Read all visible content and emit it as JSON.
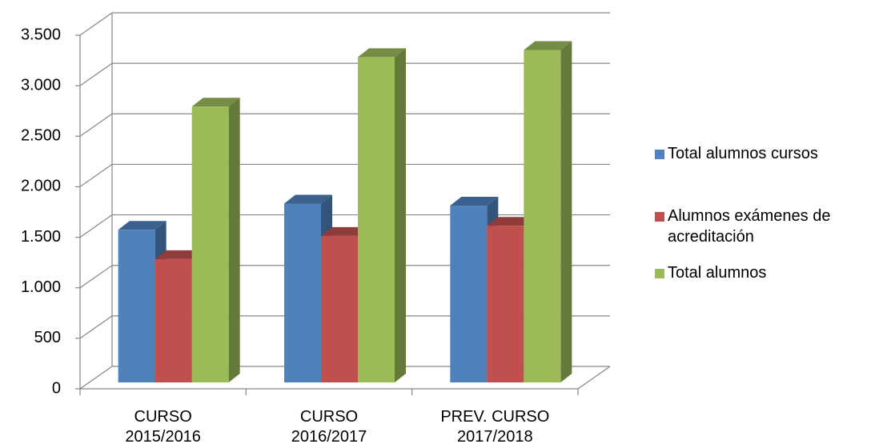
{
  "chart_data": {
    "type": "bar3d",
    "categories": [
      "CURSO 2015/2016",
      "CURSO 2016/2017",
      "PREV. CURSO 2017/2018"
    ],
    "series": [
      {
        "name": "Total alumnos cursos",
        "color": "#4f81bd",
        "values": [
          1510,
          1770,
          1750
        ]
      },
      {
        "name": "Alumnos exámenes de acreditación",
        "color": "#c0504d",
        "values": [
          1220,
          1450,
          1550
        ]
      },
      {
        "name": "Total alumnos",
        "color": "#9bbb59",
        "values": [
          2730,
          3220,
          3290
        ]
      }
    ],
    "ylim": [
      0,
      3500
    ],
    "yticks": [
      0,
      500,
      {
        "value": 1000,
        "label": "1.000"
      },
      {
        "value": 1500,
        "label": "1.500"
      },
      {
        "value": 2000,
        "label": "2.000"
      },
      {
        "value": 2500,
        "label": "2.500"
      },
      {
        "value": 3000,
        "label": "3.000"
      },
      {
        "value": 3500,
        "label": "3.500"
      }
    ],
    "grid": true,
    "legend": "right"
  }
}
